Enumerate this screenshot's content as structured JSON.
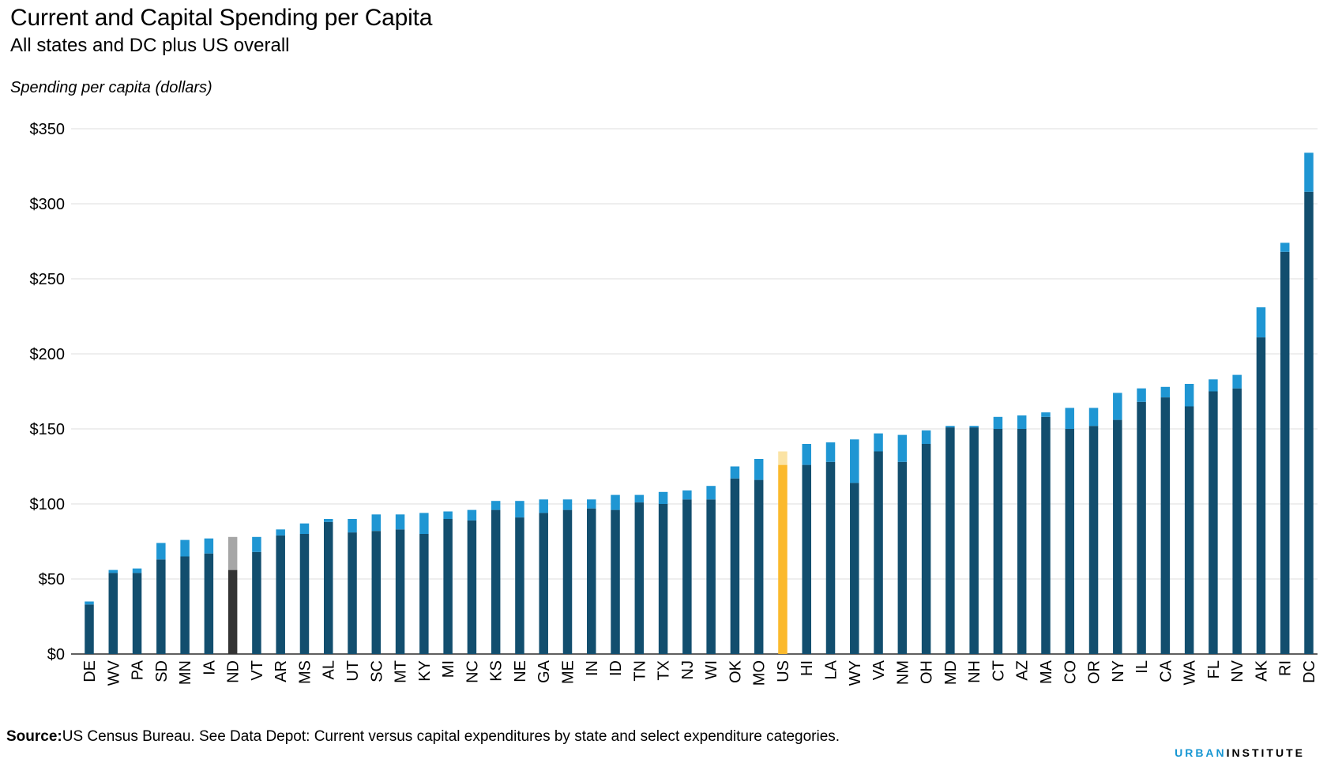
{
  "title": "Current and Capital Spending per Capita",
  "subtitle": "All states and DC plus US overall",
  "source_label": "Source:",
  "source_text": "US Census Bureau. See Data Depot: Current versus capital expenditures by state and select expenditure categories.",
  "logo": {
    "part1": "URBAN",
    "part2": "INSTITUTE"
  },
  "colors": {
    "current": "#124e6e",
    "capital": "#1f96d3",
    "highlight_current": "#fbb92c",
    "highlight_capital": "#fbe3a4",
    "muted_current": "#333333",
    "muted_capital": "#a6a6a6",
    "grid": "#dedede"
  },
  "chart_data": {
    "type": "bar",
    "stacked": true,
    "ylabel": "Spending per capita (dollars)",
    "ylim": [
      0,
      350
    ],
    "yticks": [
      0,
      50,
      100,
      150,
      200,
      250,
      300,
      350
    ],
    "ytick_labels": [
      "$0",
      "$50",
      "$100",
      "$150",
      "$200",
      "$250",
      "$300",
      "$350"
    ],
    "grid": true,
    "categories": [
      "DE",
      "WV",
      "PA",
      "SD",
      "MN",
      "IA",
      "ND",
      "VT",
      "AR",
      "MS",
      "AL",
      "UT",
      "SC",
      "MT",
      "KY",
      "MI",
      "NC",
      "KS",
      "NE",
      "GA",
      "ME",
      "IN",
      "ID",
      "TN",
      "TX",
      "NJ",
      "WI",
      "OK",
      "MO",
      "US",
      "HI",
      "LA",
      "WY",
      "VA",
      "NM",
      "OH",
      "MD",
      "NH",
      "CT",
      "AZ",
      "MA",
      "CO",
      "OR",
      "NY",
      "IL",
      "CA",
      "WA",
      "FL",
      "NV",
      "AK",
      "RI",
      "DC"
    ],
    "highlight": {
      "US": "highlight",
      "ND": "muted"
    },
    "series": [
      {
        "values": [
          33,
          54,
          54,
          63,
          65,
          67,
          56,
          68,
          79,
          80,
          88,
          81,
          82,
          83,
          80,
          90,
          89,
          96,
          91,
          94,
          96,
          97,
          96,
          101,
          100,
          103,
          103,
          117,
          116,
          126,
          126,
          128,
          114,
          135,
          128,
          140,
          151,
          151,
          150,
          150,
          158,
          150,
          152,
          156,
          168,
          171,
          165,
          175,
          177,
          211,
          268,
          308
        ]
      },
      {
        "values": [
          2,
          2,
          3,
          11,
          11,
          10,
          22,
          10,
          4,
          7,
          2,
          9,
          11,
          10,
          14,
          5,
          7,
          6,
          11,
          9,
          7,
          6,
          10,
          5,
          8,
          6,
          9,
          8,
          14,
          9,
          14,
          13,
          29,
          12,
          18,
          9,
          1,
          1,
          8,
          9,
          3,
          14,
          12,
          18,
          9,
          7,
          15,
          8,
          9,
          20,
          6,
          26
        ]
      }
    ]
  }
}
